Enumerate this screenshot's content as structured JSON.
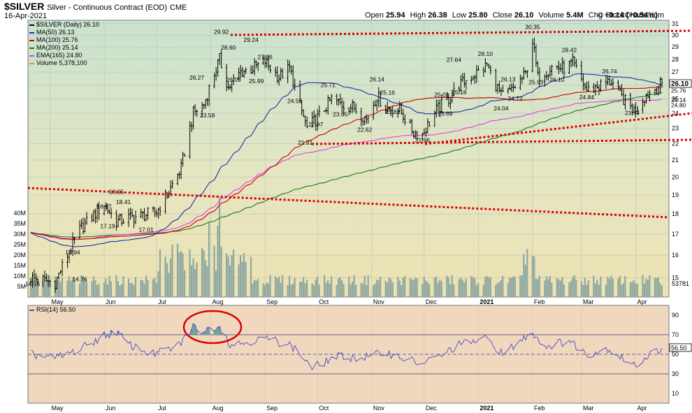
{
  "header": {
    "symbol": "$SILVER",
    "description": "Silver - Continuous Contract (EOD)",
    "exchange": "CME",
    "date": "16-Apr-2021",
    "ohlc": {
      "open_label": "Open",
      "open": "25.94",
      "high_label": "High",
      "high": "26.38",
      "low_label": "Low",
      "low": "25.80",
      "close_label": "Close",
      "close": "26.10",
      "volume_label": "Volume",
      "volume": "5.4M",
      "chg_label": "Chg",
      "chg": "+0.14 (+0.54%)"
    },
    "credit": "© StockCharts.com"
  },
  "legend": [
    {
      "text": "$SILVER (Daily) 26.10",
      "color": "#000000"
    },
    {
      "text": "MA(50) 26.13",
      "color": "#1f2ea8"
    },
    {
      "text": "MA(100) 25.76",
      "color": "#cc0000"
    },
    {
      "text": "MA(200) 25.14",
      "color": "#1a7a1a"
    },
    {
      "text": "EMA(165) 24.80",
      "color": "#e040e0"
    },
    {
      "text": "Volume 5,378,100",
      "color": "#c8a800"
    }
  ],
  "rsi_label": "RSI(14) 56.50",
  "colors": {
    "price_bg": "#cfe0c8",
    "rsi_bg": "#f2d6bc",
    "bars": "#000000",
    "ma50": "#1f2ea8",
    "ma100": "#cc0000",
    "ma200": "#1a7a1a",
    "ema165": "#e040e0",
    "volume": "#8fa8a0",
    "rsi": "#4a4ac0",
    "trendline": "#dd0000"
  },
  "chart_data": [
    {
      "type": "bar",
      "panel": "price",
      "title": "$SILVER (Daily) 26.10",
      "x_axis": {
        "ticks": [
          "May",
          "Jun",
          "Jul",
          "Aug",
          "Sep",
          "Oct",
          "Nov",
          "Dec",
          "2021",
          "Feb",
          "Mar",
          "Apr"
        ],
        "range": [
          "2020-04-20",
          "2021-04-16"
        ]
      },
      "y_axis": {
        "ticks": [
          15,
          16,
          17,
          18,
          19,
          20,
          21,
          22,
          23,
          24,
          25,
          26,
          27,
          28,
          29,
          30,
          31
        ],
        "range": [
          14.2,
          31.3
        ],
        "scale": "log",
        "side": "right"
      },
      "price_markers": [
        {
          "label": "26.10",
          "value": 26.1
        },
        {
          "label": "25.76",
          "value": 25.76
        },
        {
          "label": "25.14",
          "value": 25.14
        },
        {
          "label": "24.80",
          "value": 24.8
        }
      ],
      "series_close": {
        "x": [
          "2020-04-20",
          "2020-05-04",
          "2020-05-11",
          "2020-05-18",
          "2020-06-01",
          "2020-06-08",
          "2020-06-15",
          "2020-06-22",
          "2020-07-01",
          "2020-07-08",
          "2020-07-15",
          "2020-07-22",
          "2020-07-28",
          "2020-08-06",
          "2020-08-11",
          "2020-08-18",
          "2020-08-25",
          "2020-09-01",
          "2020-09-09",
          "2020-09-15",
          "2020-09-21",
          "2020-09-25",
          "2020-10-02",
          "2020-10-09",
          "2020-10-15",
          "2020-10-22",
          "2020-10-29",
          "2020-11-04",
          "2020-11-09",
          "2020-11-17",
          "2020-11-25",
          "2020-11-30",
          "2020-12-08",
          "2020-12-15",
          "2020-12-21",
          "2021-01-06",
          "2021-01-14",
          "2021-01-20",
          "2021-01-28",
          "2021-02-01",
          "2021-02-04",
          "2021-02-12",
          "2021-02-19",
          "2021-02-24",
          "2021-03-04",
          "2021-03-10",
          "2021-03-18",
          "2021-03-24",
          "2021-03-31",
          "2021-04-07",
          "2021-04-16"
        ],
        "y": [
          15.0,
          14.8,
          16.0,
          17.2,
          18.5,
          17.6,
          17.8,
          17.9,
          18.1,
          19.2,
          20.5,
          24.0,
          24.6,
          28.0,
          25.8,
          27.0,
          27.3,
          27.8,
          26.6,
          27.3,
          24.5,
          23.0,
          23.8,
          25.0,
          24.6,
          24.4,
          23.6,
          25.2,
          24.4,
          24.2,
          22.7,
          22.6,
          24.2,
          25.0,
          26.0,
          27.5,
          25.2,
          25.6,
          26.8,
          29.5,
          26.6,
          27.4,
          27.3,
          27.7,
          25.6,
          25.9,
          26.3,
          25.1,
          24.2,
          25.3,
          26.1
        ]
      },
      "price_annotations": [
        {
          "x": "2020-04-21",
          "label": "14.56",
          "value": 14.56
        },
        {
          "x": "2020-05-14",
          "label": "15.94",
          "value": 15.94
        },
        {
          "x": "2020-05-18",
          "label": "14.76",
          "value": 14.76
        },
        {
          "x": "2020-06-01",
          "label": "18.17",
          "value": 18.17
        },
        {
          "x": "2020-06-03",
          "label": "17.19",
          "value": 17.19
        },
        {
          "x": "2020-06-08",
          "label": "18.95",
          "value": 18.95
        },
        {
          "x": "2020-06-12",
          "label": "18.41",
          "value": 18.41
        },
        {
          "x": "2020-06-25",
          "label": "17.01",
          "value": 17.01
        },
        {
          "x": "2020-07-24",
          "label": "26.27",
          "value": 26.27
        },
        {
          "x": "2020-07-30",
          "label": "23.58",
          "value": 23.58
        },
        {
          "x": "2020-08-07",
          "label": "29.92",
          "value": 29.92
        },
        {
          "x": "2020-08-11",
          "label": "28.60",
          "value": 28.6
        },
        {
          "x": "2020-08-14",
          "label": "26.09",
          "value": 26.09
        },
        {
          "x": "2020-08-24",
          "label": "29.24",
          "value": 29.24
        },
        {
          "x": "2020-08-27",
          "label": "25.99",
          "value": 25.99
        },
        {
          "x": "2020-09-01",
          "label": "27.86",
          "value": 27.86
        },
        {
          "x": "2020-09-18",
          "label": "24.55",
          "value": 24.55
        },
        {
          "x": "2020-09-24",
          "label": "21.81",
          "value": 21.81
        },
        {
          "x": "2020-09-30",
          "label": "22.97",
          "value": 22.97
        },
        {
          "x": "2020-10-07",
          "label": "25.71",
          "value": 25.71
        },
        {
          "x": "2020-10-14",
          "label": "23.65",
          "value": 23.65
        },
        {
          "x": "2020-10-28",
          "label": "22.62",
          "value": 22.62
        },
        {
          "x": "2020-11-04",
          "label": "26.14",
          "value": 26.14
        },
        {
          "x": "2020-11-10",
          "label": "25.16",
          "value": 25.16
        },
        {
          "x": "2020-11-13",
          "label": "23.81",
          "value": 23.81
        },
        {
          "x": "2020-11-30",
          "label": "21.96",
          "value": 21.96
        },
        {
          "x": "2020-12-11",
          "label": "25.01",
          "value": 25.01
        },
        {
          "x": "2020-12-13",
          "label": "23.69",
          "value": 23.69
        },
        {
          "x": "2020-12-18",
          "label": "27.64",
          "value": 27.64
        },
        {
          "x": "2020-12-21",
          "label": "25.18",
          "value": 25.18
        },
        {
          "x": "2021-01-05",
          "label": "28.10",
          "value": 28.1
        },
        {
          "x": "2021-01-14",
          "label": "24.04",
          "value": 24.04
        },
        {
          "x": "2021-01-18",
          "label": "26.13",
          "value": 26.13
        },
        {
          "x": "2021-01-22",
          "label": "24.72",
          "value": 24.72
        },
        {
          "x": "2021-02-01",
          "label": "30.35",
          "value": 30.35
        },
        {
          "x": "2021-02-03",
          "label": "25.93",
          "value": 25.93
        },
        {
          "x": "2021-02-15",
          "label": "26.10",
          "value": 26.1
        },
        {
          "x": "2021-02-22",
          "label": "28.42",
          "value": 28.42
        },
        {
          "x": "2021-03-04",
          "label": "24.84",
          "value": 24.84
        },
        {
          "x": "2021-03-17",
          "label": "26.74",
          "value": 26.74
        },
        {
          "x": "2021-03-30",
          "label": "23.74",
          "value": 23.74
        }
      ]
    },
    {
      "type": "bar",
      "panel": "volume",
      "y_axis": {
        "ticks": [
          "5M",
          "10M",
          "15M",
          "20M",
          "25M",
          "30M",
          "35M",
          "40M"
        ],
        "range": [
          0,
          45000000
        ],
        "side": "left"
      },
      "last_label": "53781",
      "series": [
        {
          "name": "Volume 5,378,100",
          "last": 5378100
        }
      ]
    },
    {
      "type": "line",
      "panel": "rsi",
      "title": "RSI(14) 56.50",
      "y_axis": {
        "ticks": [
          10,
          30,
          50,
          70,
          90
        ],
        "range": [
          0,
          100
        ],
        "side": "right"
      },
      "reference_lines": [
        30,
        50,
        70
      ],
      "last_value": 56.5,
      "last_label": "56.50",
      "series": [
        {
          "name": "RSI(14) 56.50",
          "x": [
            "2020-04-20",
            "2020-05-04",
            "2020-05-18",
            "2020-06-01",
            "2020-06-08",
            "2020-06-15",
            "2020-06-29",
            "2020-07-13",
            "2020-07-22",
            "2020-07-28",
            "2020-08-06",
            "2020-08-12",
            "2020-08-20",
            "2020-09-01",
            "2020-09-15",
            "2020-09-21",
            "2020-09-28",
            "2020-10-12",
            "2020-10-26",
            "2020-11-09",
            "2020-11-30",
            "2020-12-14",
            "2020-12-21",
            "2021-01-06",
            "2021-01-15",
            "2021-02-01",
            "2021-02-08",
            "2021-02-22",
            "2021-03-04",
            "2021-03-16",
            "2021-03-31",
            "2021-04-09",
            "2021-04-16"
          ],
          "y": [
            50,
            46,
            55,
            69,
            73,
            60,
            50,
            58,
            78,
            74,
            80,
            60,
            62,
            66,
            60,
            50,
            36,
            48,
            46,
            52,
            40,
            52,
            60,
            66,
            50,
            73,
            58,
            64,
            50,
            56,
            38,
            50,
            56.5
          ]
        }
      ]
    }
  ]
}
